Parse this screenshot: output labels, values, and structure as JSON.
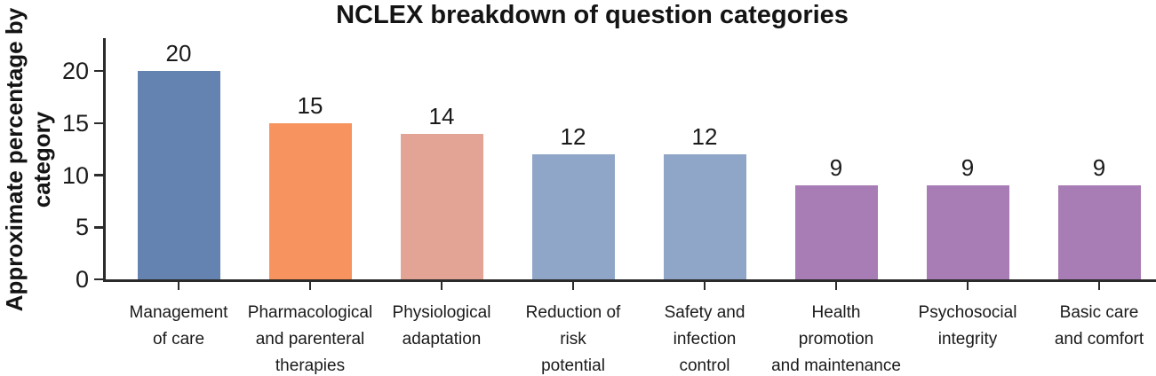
{
  "chart_data": {
    "type": "bar",
    "title": "NCLEX breakdown of question categories",
    "ylabel": "Approximate percentage by category",
    "ylabel_lines": [
      "Approximate percentage",
      "by category"
    ],
    "xlabel": "",
    "categories": [
      "Management of care",
      "Pharmacological and parenteral therapies",
      "Physiological adaptation",
      "Reduction of risk potential",
      "Safety and infection control",
      "Health promotion and maintenance",
      "Psychosocial integrity",
      "Basic care and comfort"
    ],
    "category_label_lines": [
      [
        "Management",
        "of care"
      ],
      [
        "Pharmacological",
        "and parenteral",
        "therapies"
      ],
      [
        "Physiological",
        "adaptation"
      ],
      [
        "Reduction of",
        "risk",
        "potential"
      ],
      [
        "Safety and",
        "infection",
        "control"
      ],
      [
        "Health",
        "promotion",
        "and maintenance"
      ],
      [
        "Psychosocial",
        "integrity"
      ],
      [
        "Basic care",
        "and comfort"
      ]
    ],
    "values": [
      20,
      15,
      14,
      12,
      12,
      9,
      9,
      9
    ],
    "bar_colors": [
      "#6583b1",
      "#f6935e",
      "#e3a496",
      "#90a6c9",
      "#90a6c9",
      "#a87cb4",
      "#a87cb4",
      "#a87cb4"
    ],
    "yticks": [
      0,
      5,
      10,
      15,
      20
    ],
    "ylim": [
      0,
      23.1
    ],
    "grid": false,
    "legend": "none"
  }
}
